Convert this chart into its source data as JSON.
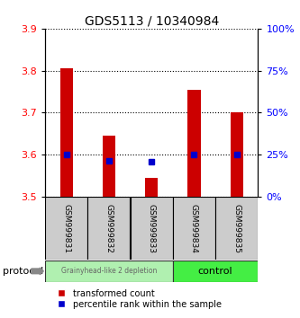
{
  "title": "GDS5113 / 10340984",
  "samples": [
    "GSM999831",
    "GSM999832",
    "GSM999833",
    "GSM999834",
    "GSM999835"
  ],
  "transformed_counts": [
    3.805,
    3.645,
    3.545,
    3.755,
    3.7
  ],
  "bar_bottom": 3.5,
  "percentile_y": [
    3.6,
    3.585,
    3.583,
    3.6,
    3.6
  ],
  "ylim": [
    3.5,
    3.9
  ],
  "yticks": [
    3.5,
    3.6,
    3.7,
    3.8,
    3.9
  ],
  "right_yticks": [
    0,
    25,
    50,
    75,
    100
  ],
  "right_ylim": [
    0,
    100
  ],
  "bar_color": "#cc0000",
  "dot_color": "#0000cc",
  "group1_label": "Grainyhead-like 2 depletion",
  "group2_label": "control",
  "group1_color": "#b0f0b0",
  "group2_color": "#44ee44",
  "protocol_label": "protocol",
  "legend_bar_label": "transformed count",
  "legend_dot_label": "percentile rank within the sample",
  "title_fontsize": 10,
  "tick_fontsize": 8,
  "sample_fontsize": 6.5,
  "legend_fontsize": 7,
  "bar_width": 0.3
}
